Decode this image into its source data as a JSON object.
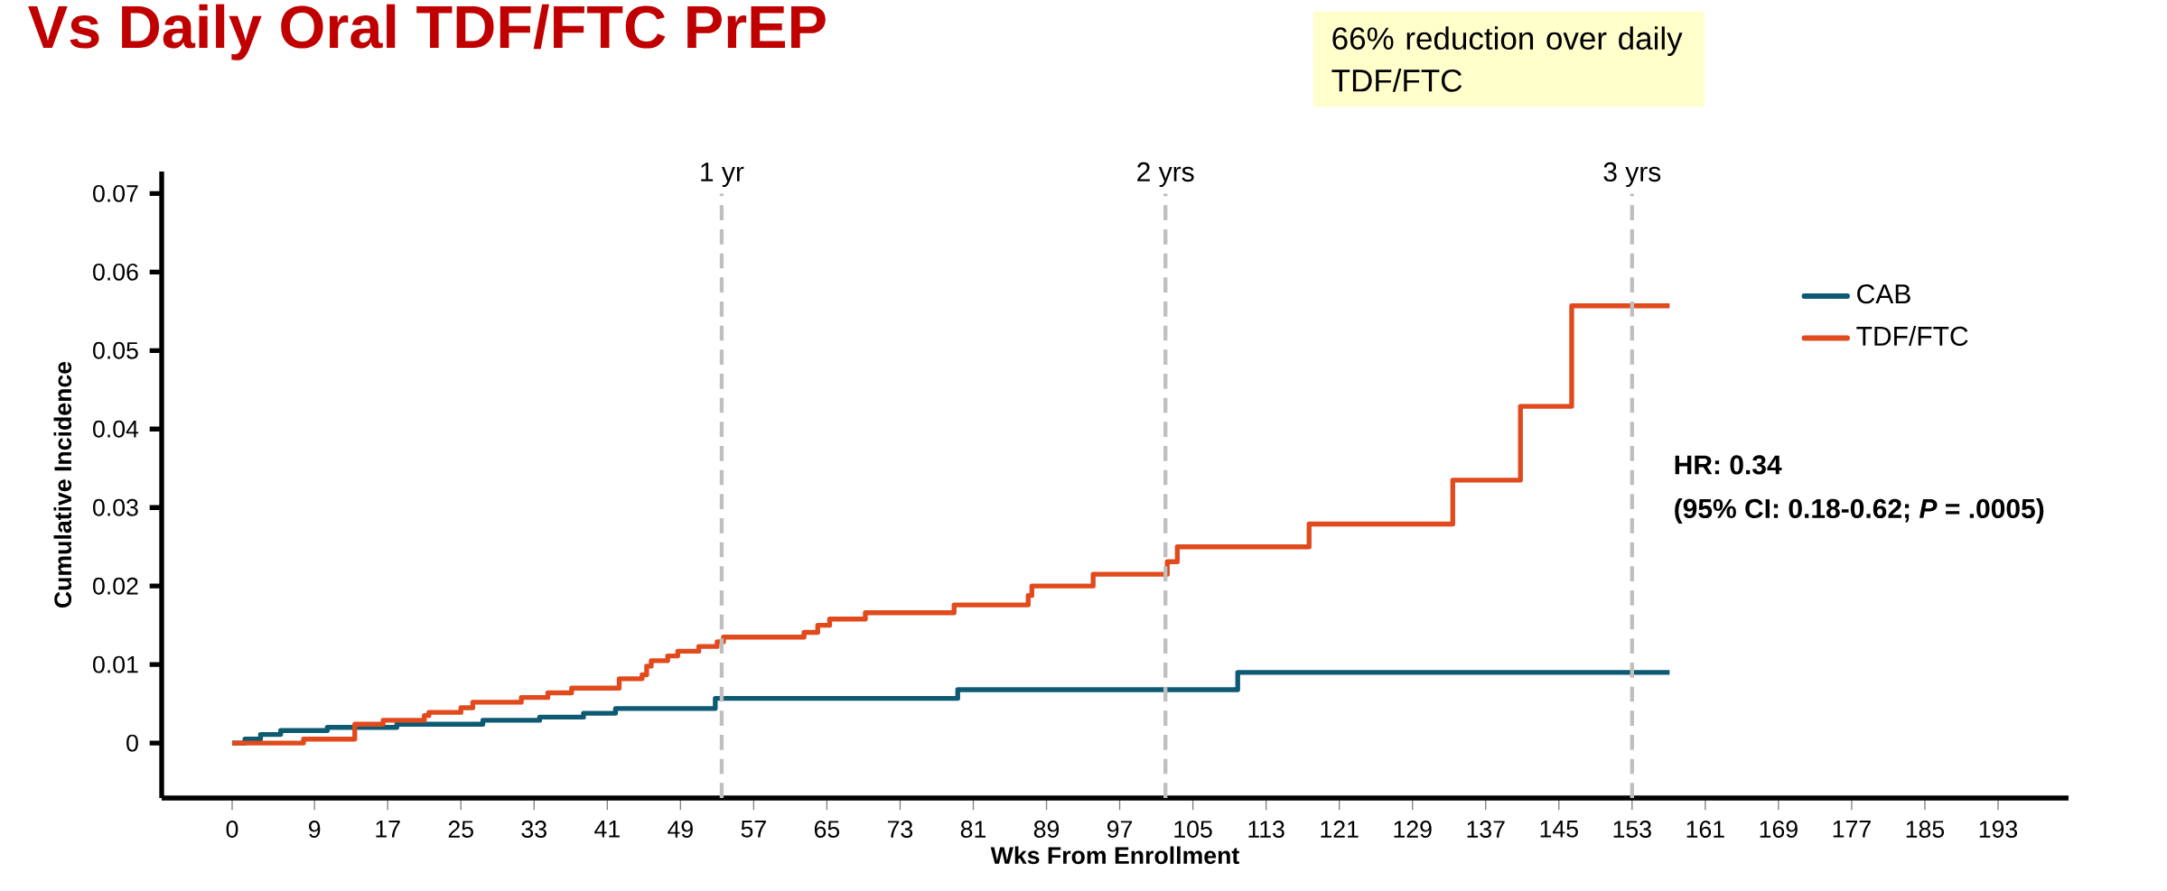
{
  "chart_data": {
    "type": "step",
    "title": "Vs Daily Oral TDF/FTC PrEP",
    "xlabel": "Wks From Enrollment",
    "ylabel": "Cumulative Incidence",
    "xlim": [
      -7.7,
      200.7
    ],
    "ylim": [
      -0.007,
      0.0728
    ],
    "xticks": [
      0,
      9,
      17,
      25,
      33,
      41,
      49,
      57,
      65,
      73,
      81,
      89,
      97,
      105,
      113,
      121,
      129,
      137,
      145,
      153,
      161,
      169,
      177,
      185,
      193
    ],
    "yticks": [
      0,
      0.01,
      0.02,
      0.03,
      0.04,
      0.05,
      0.06,
      0.07
    ],
    "legend": "top right",
    "series": [
      {
        "name": "CAB",
        "color": "#0e5a73",
        "x": [
          0,
          1.4,
          3.1,
          5.3,
          10.4,
          18.0,
          27.4,
          33.6,
          38.4,
          41.9,
          52.8,
          79.3,
          109.9,
          157.1
        ],
        "values": [
          0,
          0.0005,
          0.0011,
          0.0016,
          0.002,
          0.0024,
          0.0029,
          0.0033,
          0.0038,
          0.0044,
          0.0057,
          0.0068,
          0.009,
          0.009
        ]
      },
      {
        "name": "TDF/FTC",
        "color": "#e04a1c",
        "x": [
          0,
          7.8,
          13.4,
          16.5,
          21.0,
          21.5,
          25.0,
          26.3,
          31.6,
          34.5,
          37.1,
          42.3,
          44.8,
          45.3,
          45.8,
          47.6,
          48.7,
          51.0,
          53.0,
          53.7,
          62.5,
          64.0,
          65.3,
          69.2,
          78.9,
          87.0,
          87.4,
          94.1,
          102.2,
          103.3,
          117.7,
          133.4,
          140.8,
          146.4,
          157.1
        ],
        "values": [
          0,
          0.0005,
          0.0024,
          0.0029,
          0.0035,
          0.0039,
          0.0045,
          0.0052,
          0.0058,
          0.0064,
          0.007,
          0.0082,
          0.0087,
          0.0098,
          0.0105,
          0.0111,
          0.0117,
          0.0123,
          0.0129,
          0.0135,
          0.0141,
          0.015,
          0.0158,
          0.0166,
          0.0176,
          0.0188,
          0.02,
          0.0215,
          0.0231,
          0.025,
          0.0279,
          0.0335,
          0.0429,
          0.0557,
          0.0557
        ]
      }
    ],
    "ref_lines": [
      {
        "axis": "x",
        "value": 53.5,
        "label": "1 yr",
        "color": "#bfbfbf",
        "line_style": "dashed"
      },
      {
        "axis": "x",
        "value": 102,
        "label": "2 yrs",
        "color": "#bfbfbf",
        "line_style": "dashed"
      },
      {
        "axis": "x",
        "value": 153,
        "label": "3 yrs",
        "color": "#bfbfbf",
        "line_style": "dashed"
      }
    ],
    "annotations": [
      "66% reduction over daily TDF/FTC",
      "HR: 0.34",
      "(95% CI: 0.18-0.62; *P* = .0005)"
    ]
  }
}
